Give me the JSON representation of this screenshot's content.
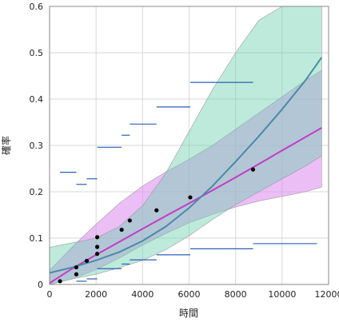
{
  "chart_data": {
    "type": "scatter",
    "xlabel": "時間",
    "ylabel": "確率",
    "xlim": [
      0,
      12000
    ],
    "ylim": [
      0,
      0.6
    ],
    "x_ticks": [
      0,
      2000,
      4000,
      6000,
      8000,
      10000,
      12000
    ],
    "y_ticks": [
      0,
      0.1,
      0.2,
      0.3,
      0.4,
      0.5,
      0.6
    ],
    "x_tick_labels": [
      "0",
      "2000",
      "4000",
      "6000",
      "8000",
      "10000",
      "12000"
    ],
    "y_tick_labels": [
      "0",
      "0.1",
      "0.2",
      "0.3",
      "0.4",
      "0.5",
      "0.6"
    ],
    "grid": true,
    "colors": {
      "points": "#000000",
      "intervals": "#2b5fb4",
      "magenta_fit": "#c43cc4",
      "magenta_band": "#dd88ee",
      "teal_fit": "#4a8aa6",
      "teal_band": "#6cd0b0",
      "grid": "#d9d9d9"
    },
    "points": [
      {
        "x": 450,
        "y": 0.007
      },
      {
        "x": 1150,
        "y": 0.022
      },
      {
        "x": 1150,
        "y": 0.037
      },
      {
        "x": 1600,
        "y": 0.051
      },
      {
        "x": 2050,
        "y": 0.066
      },
      {
        "x": 2050,
        "y": 0.081
      },
      {
        "x": 2050,
        "y": 0.102
      },
      {
        "x": 3100,
        "y": 0.118
      },
      {
        "x": 3450,
        "y": 0.138
      },
      {
        "x": 4600,
        "y": 0.16
      },
      {
        "x": 6050,
        "y": 0.188
      },
      {
        "x": 8750,
        "y": 0.248
      }
    ],
    "interval_segments": [
      {
        "x1": 1150,
        "x2": 1600,
        "y": 0.007
      },
      {
        "x1": 1600,
        "x2": 2050,
        "y": 0.012
      },
      {
        "x1": 2050,
        "x2": 3100,
        "y": 0.034
      },
      {
        "x1": 3100,
        "x2": 3450,
        "y": 0.044
      },
      {
        "x1": 3450,
        "x2": 4600,
        "y": 0.053
      },
      {
        "x1": 4600,
        "x2": 6050,
        "y": 0.064
      },
      {
        "x1": 6050,
        "x2": 8750,
        "y": 0.077
      },
      {
        "x1": 8750,
        "x2": 11500,
        "y": 0.088
      },
      {
        "x1": 450,
        "x2": 1150,
        "y": 0.242
      },
      {
        "x1": 1150,
        "x2": 1600,
        "y": 0.216
      },
      {
        "x1": 1600,
        "x2": 2050,
        "y": 0.228
      },
      {
        "x1": 2050,
        "x2": 3100,
        "y": 0.296
      },
      {
        "x1": 3100,
        "x2": 3450,
        "y": 0.322
      },
      {
        "x1": 3450,
        "x2": 4600,
        "y": 0.346
      },
      {
        "x1": 4600,
        "x2": 6050,
        "y": 0.383
      },
      {
        "x1": 6050,
        "x2": 8750,
        "y": 0.436
      }
    ],
    "series": [
      {
        "x": [
          0,
          1000,
          2000,
          3000,
          4000,
          5000,
          6000,
          7000,
          8000,
          9000,
          10000,
          11000,
          11700
        ],
        "fit": [
          0.003,
          0.035,
          0.064,
          0.092,
          0.12,
          0.148,
          0.175,
          0.203,
          0.231,
          0.26,
          0.289,
          0.318,
          0.338
        ],
        "lower": [
          0.0,
          0.012,
          0.032,
          0.057,
          0.085,
          0.11,
          0.133,
          0.151,
          0.167,
          0.18,
          0.19,
          0.2,
          0.21
        ],
        "upper": [
          0.03,
          0.082,
          0.13,
          0.175,
          0.212,
          0.243,
          0.27,
          0.3,
          0.335,
          0.37,
          0.405,
          0.44,
          0.462
        ]
      },
      {
        "x": [
          0,
          1000,
          2000,
          3000,
          4000,
          5000,
          6000,
          7000,
          8000,
          9000,
          10000,
          11000,
          11700
        ],
        "fit": [
          0.025,
          0.037,
          0.052,
          0.07,
          0.094,
          0.125,
          0.165,
          0.212,
          0.265,
          0.32,
          0.378,
          0.44,
          0.49
        ],
        "lower": [
          0.0,
          0.012,
          0.022,
          0.036,
          0.052,
          0.075,
          0.105,
          0.14,
          0.172,
          0.2,
          0.228,
          0.255,
          0.278
        ],
        "upper": [
          0.08,
          0.09,
          0.1,
          0.125,
          0.17,
          0.24,
          0.33,
          0.42,
          0.5,
          0.57,
          0.62,
          0.6,
          0.6
        ]
      },
      {
        "x": [
          6500,
          7000,
          8000,
          9000,
          10000,
          11000,
          11700
        ],
        "fit": [
          0.11,
          0.12,
          0.14,
          0.16,
          0.175,
          0.19,
          0.2
        ],
        "lower": [
          0.09,
          0.1,
          0.12,
          0.14,
          0.16,
          0.17,
          0.18
        ],
        "upper": [
          0.41,
          0.44,
          0.48,
          0.51,
          0.54,
          0.57,
          0.6
        ]
      }
    ]
  }
}
